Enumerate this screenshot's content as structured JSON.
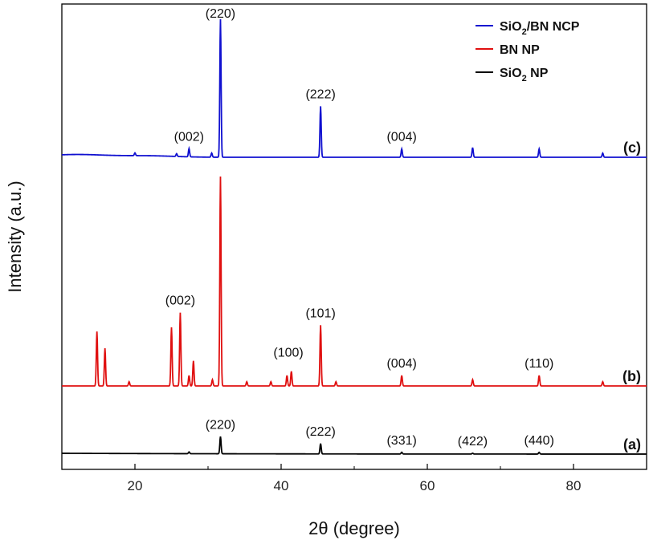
{
  "chart_data": {
    "type": "line",
    "xlabel": "2θ (degree)",
    "ylabel": "Intensity (a.u.)",
    "xlim": [
      10,
      90
    ],
    "xticks": [
      20,
      40,
      60,
      80
    ],
    "y_ticks_shown": false,
    "grid": false,
    "legend_position": "top-right",
    "legend": [
      {
        "label_main": "SiO",
        "label_sub": "2",
        "label_rest": "/BN NCP",
        "color": "#1010d0"
      },
      {
        "label_main": "BN NP",
        "label_sub": "",
        "label_rest": "",
        "color": "#e01010"
      },
      {
        "label_main": "SiO",
        "label_sub": "2",
        "label_rest": " NP",
        "color": "#000000"
      }
    ],
    "series": [
      {
        "name": "SiO2/BN NCP",
        "tag": "(c)",
        "color": "#1010d0",
        "baseline": 0.02,
        "peaks": [
          {
            "x": 20.0,
            "y": 0.02
          },
          {
            "x": 25.7,
            "y": 0.02
          },
          {
            "x": 27.4,
            "y": 0.06
          },
          {
            "x": 30.5,
            "y": 0.03
          },
          {
            "x": 31.7,
            "y": 1.0
          },
          {
            "x": 45.4,
            "y": 0.37
          },
          {
            "x": 56.5,
            "y": 0.06
          },
          {
            "x": 66.2,
            "y": 0.07
          },
          {
            "x": 75.3,
            "y": 0.06
          },
          {
            "x": 84.0,
            "y": 0.03
          }
        ],
        "annotations": [
          {
            "text": "(002)",
            "x": 27.4
          },
          {
            "text": "(220)",
            "x": 31.7
          },
          {
            "text": "(222)",
            "x": 45.4
          },
          {
            "text": "(004)",
            "x": 56.5
          }
        ]
      },
      {
        "name": "BN NP",
        "tag": "(b)",
        "color": "#e01010",
        "baseline": 0.0,
        "peaks": [
          {
            "x": 14.8,
            "y": 0.26
          },
          {
            "x": 15.9,
            "y": 0.18
          },
          {
            "x": 19.2,
            "y": 0.02
          },
          {
            "x": 25.0,
            "y": 0.28
          },
          {
            "x": 26.2,
            "y": 0.35
          },
          {
            "x": 27.4,
            "y": 0.05
          },
          {
            "x": 28.0,
            "y": 0.12
          },
          {
            "x": 30.6,
            "y": 0.03
          },
          {
            "x": 31.7,
            "y": 1.0
          },
          {
            "x": 35.3,
            "y": 0.02
          },
          {
            "x": 38.6,
            "y": 0.02
          },
          {
            "x": 40.8,
            "y": 0.05
          },
          {
            "x": 41.4,
            "y": 0.07
          },
          {
            "x": 45.4,
            "y": 0.29
          },
          {
            "x": 47.5,
            "y": 0.02
          },
          {
            "x": 56.5,
            "y": 0.05
          },
          {
            "x": 66.2,
            "y": 0.03
          },
          {
            "x": 75.3,
            "y": 0.05
          },
          {
            "x": 84.0,
            "y": 0.02
          }
        ],
        "annotations": [
          {
            "text": "(002)",
            "x": 26.2
          },
          {
            "text": "(101)",
            "x": 45.4
          },
          {
            "text": "(100)",
            "x": 41.0
          },
          {
            "text": "(004)",
            "x": 56.5
          },
          {
            "text": "(110)",
            "x": 75.3
          }
        ]
      },
      {
        "name": "SiO2 NP",
        "tag": "(a)",
        "color": "#000000",
        "baseline": 0.0,
        "peaks": [
          {
            "x": 27.4,
            "y": 0.02
          },
          {
            "x": 31.7,
            "y": 0.2
          },
          {
            "x": 45.4,
            "y": 0.12
          },
          {
            "x": 56.5,
            "y": 0.02
          },
          {
            "x": 66.2,
            "y": 0.01
          },
          {
            "x": 75.3,
            "y": 0.02
          }
        ],
        "annotations": [
          {
            "text": "(220)",
            "x": 31.7
          },
          {
            "text": "(222)",
            "x": 45.4
          },
          {
            "text": "(331)",
            "x": 56.5
          },
          {
            "text": "(422)",
            "x": 66.2
          },
          {
            "text": "(440)",
            "x": 75.3
          }
        ]
      }
    ]
  }
}
